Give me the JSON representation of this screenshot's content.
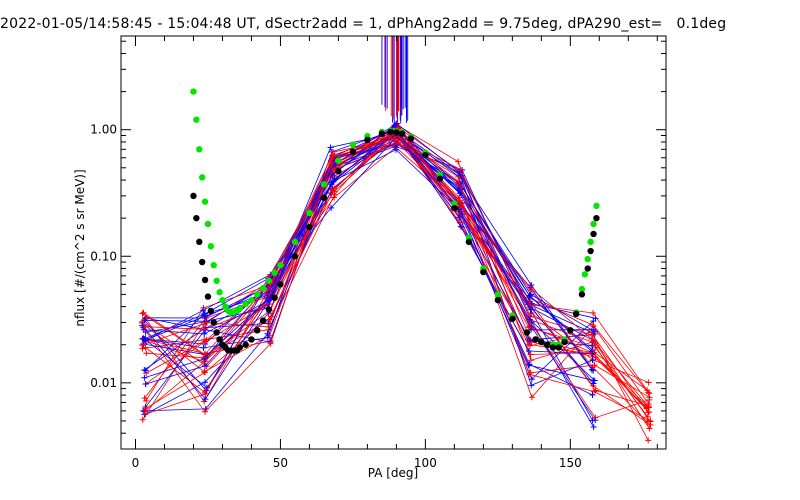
{
  "chart_data": {
    "type": "scatter",
    "title": "2022-01-05/14:58:45 - 15:04:48 UT, dSectr2add = 1, dPhAng2add = 9.75deg, dPA290_est=   0.1deg",
    "xlabel": "PA [deg]",
    "ylabel": "nflux [#/(cm^2 s sr MeV)]",
    "xlim": [
      -5,
      183
    ],
    "ylim": [
      0.003,
      5.5
    ],
    "yscale": "log",
    "x_ticks": [
      0,
      50,
      100,
      150
    ],
    "x_tick_labels": [
      "0",
      "50",
      "100",
      "150"
    ],
    "y_ticks": [
      0.01,
      0.1,
      1.0
    ],
    "y_tick_labels": [
      "0.01",
      "0.10",
      "1.00"
    ],
    "grid": false,
    "legend": "none",
    "series": [
      {
        "color": "#00e600",
        "marker": "filled-circle",
        "x": [
          20,
          21,
          22,
          23,
          24,
          25,
          26,
          27,
          28,
          29,
          30,
          31,
          32,
          33,
          34,
          35,
          36,
          38,
          40,
          42,
          44,
          46,
          48,
          50,
          55,
          60,
          65,
          70,
          75,
          80,
          85,
          88,
          90,
          92,
          95,
          100,
          105,
          110,
          115,
          120,
          125,
          130,
          135,
          138,
          140,
          142,
          144,
          146,
          148,
          150,
          152,
          154,
          155,
          156,
          157,
          158,
          159
        ],
        "y": [
          2.0,
          1.2,
          0.7,
          0.42,
          0.27,
          0.18,
          0.12,
          0.085,
          0.064,
          0.052,
          0.045,
          0.04,
          0.037,
          0.036,
          0.036,
          0.037,
          0.039,
          0.042,
          0.045,
          0.05,
          0.056,
          0.064,
          0.074,
          0.085,
          0.13,
          0.22,
          0.37,
          0.57,
          0.76,
          0.89,
          0.96,
          0.98,
          0.97,
          0.95,
          0.88,
          0.66,
          0.44,
          0.26,
          0.14,
          0.08,
          0.05,
          0.034,
          0.025,
          0.022,
          0.021,
          0.02,
          0.02,
          0.02,
          0.022,
          0.026,
          0.036,
          0.055,
          0.072,
          0.095,
          0.13,
          0.18,
          0.25
        ]
      },
      {
        "color": "#000000",
        "marker": "filled-circle",
        "x": [
          20,
          21,
          22,
          23,
          24,
          25,
          26,
          27,
          28,
          29,
          30,
          31,
          32,
          33,
          34,
          35,
          36,
          38,
          40,
          42,
          44,
          46,
          48,
          50,
          55,
          60,
          65,
          70,
          75,
          80,
          85,
          88,
          90,
          92,
          95,
          100,
          105,
          110,
          115,
          120,
          125,
          130,
          135,
          138,
          140,
          142,
          144,
          146,
          148,
          150,
          152,
          154,
          156,
          157,
          158,
          159
        ],
        "y": [
          0.3,
          0.2,
          0.13,
          0.09,
          0.065,
          0.048,
          0.037,
          0.03,
          0.025,
          0.022,
          0.02,
          0.019,
          0.018,
          0.018,
          0.018,
          0.018,
          0.019,
          0.02,
          0.022,
          0.026,
          0.031,
          0.038,
          0.047,
          0.06,
          0.1,
          0.17,
          0.29,
          0.47,
          0.67,
          0.83,
          0.93,
          0.96,
          0.95,
          0.93,
          0.85,
          0.63,
          0.41,
          0.24,
          0.13,
          0.075,
          0.045,
          0.032,
          0.025,
          0.022,
          0.021,
          0.02,
          0.019,
          0.019,
          0.021,
          0.026,
          0.035,
          0.05,
          0.08,
          0.11,
          0.15,
          0.2
        ]
      }
    ]
  }
}
